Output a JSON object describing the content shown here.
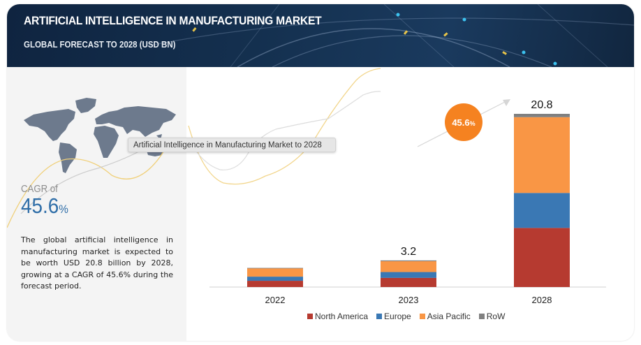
{
  "header": {
    "title": "ARTIFICIAL INTELLIGENCE IN MANUFACTURING  MARKET",
    "subtitle": "GLOBAL FORECAST TO 2028 (USD BN)"
  },
  "sidebar": {
    "map_icon": "world-map-icon",
    "cagr_label": "CAGR of",
    "cagr_value": "45.6",
    "cagr_unit": "%",
    "description": "The global artificial intelligence in manufacturing market is expected to be worth USD 20.8 billion by 2028, growing at a CAGR of 45.6% during the forecast period."
  },
  "tooltip": "Artificial Intelligence in Manufacturing Market to 2028",
  "badge": {
    "value": "45.6",
    "unit": "%",
    "color": "#f58220"
  },
  "chart_data": {
    "type": "bar",
    "stacked": true,
    "title": "Artificial Intelligence in Manufacturing Market to 2028",
    "xlabel": "",
    "ylabel": "USD BN",
    "categories": [
      "2022",
      "2023",
      "2028"
    ],
    "series": [
      {
        "name": "North America",
        "color": "#b63a30",
        "values": [
          0.75,
          1.1,
          7.1
        ]
      },
      {
        "name": "Europe",
        "color": "#3a78b4",
        "values": [
          0.5,
          0.7,
          4.2
        ]
      },
      {
        "name": "Asia Pacific",
        "color": "#f99645",
        "values": [
          1.0,
          1.3,
          9.1
        ]
      },
      {
        "name": "RoW",
        "color": "#808080",
        "values": [
          0.05,
          0.1,
          0.4
        ]
      }
    ],
    "totals_labels": [
      "",
      "3.2",
      "20.8"
    ],
    "ylim": [
      0,
      21
    ],
    "grid": false,
    "legend": "bottom",
    "annotation": "45.6% CAGR"
  }
}
